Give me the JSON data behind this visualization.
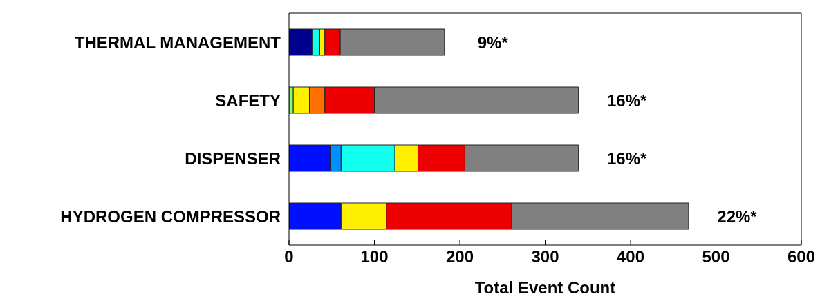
{
  "chart_data": {
    "type": "bar",
    "orientation": "horizontal",
    "stacked": true,
    "xlabel": "Total Event Count",
    "categories": [
      "THERMAL MANAGEMENT",
      "SAFETY",
      "DISPENSER",
      "HYDROGEN COMPRESSOR"
    ],
    "series": [
      {
        "color": "#00008f",
        "values": [
          27,
          null,
          null,
          null
        ]
      },
      {
        "color": "#0010ff",
        "values": [
          null,
          null,
          49,
          61
        ]
      },
      {
        "color": "#0090ff",
        "values": [
          null,
          null,
          12,
          null
        ]
      },
      {
        "color": "#10ffef",
        "values": [
          9,
          null,
          63,
          null
        ]
      },
      {
        "color": "#80ff70",
        "values": [
          null,
          5,
          null,
          null
        ]
      },
      {
        "color": "#ffef00",
        "values": [
          6,
          19,
          27,
          53
        ]
      },
      {
        "color": "#ff7000",
        "values": [
          null,
          18,
          null,
          null
        ]
      },
      {
        "color": "#ef0000",
        "values": [
          18,
          58,
          55,
          147
        ]
      },
      {
        "color": "#808080",
        "values": [
          122,
          239,
          133,
          207
        ]
      }
    ],
    "annotations": [
      "9%*",
      "16%*",
      "16%*",
      "22%*"
    ],
    "xlim": [
      0,
      600
    ],
    "xticks": [
      0,
      100,
      200,
      300,
      400,
      500,
      600
    ],
    "grid": false,
    "legend": false
  }
}
